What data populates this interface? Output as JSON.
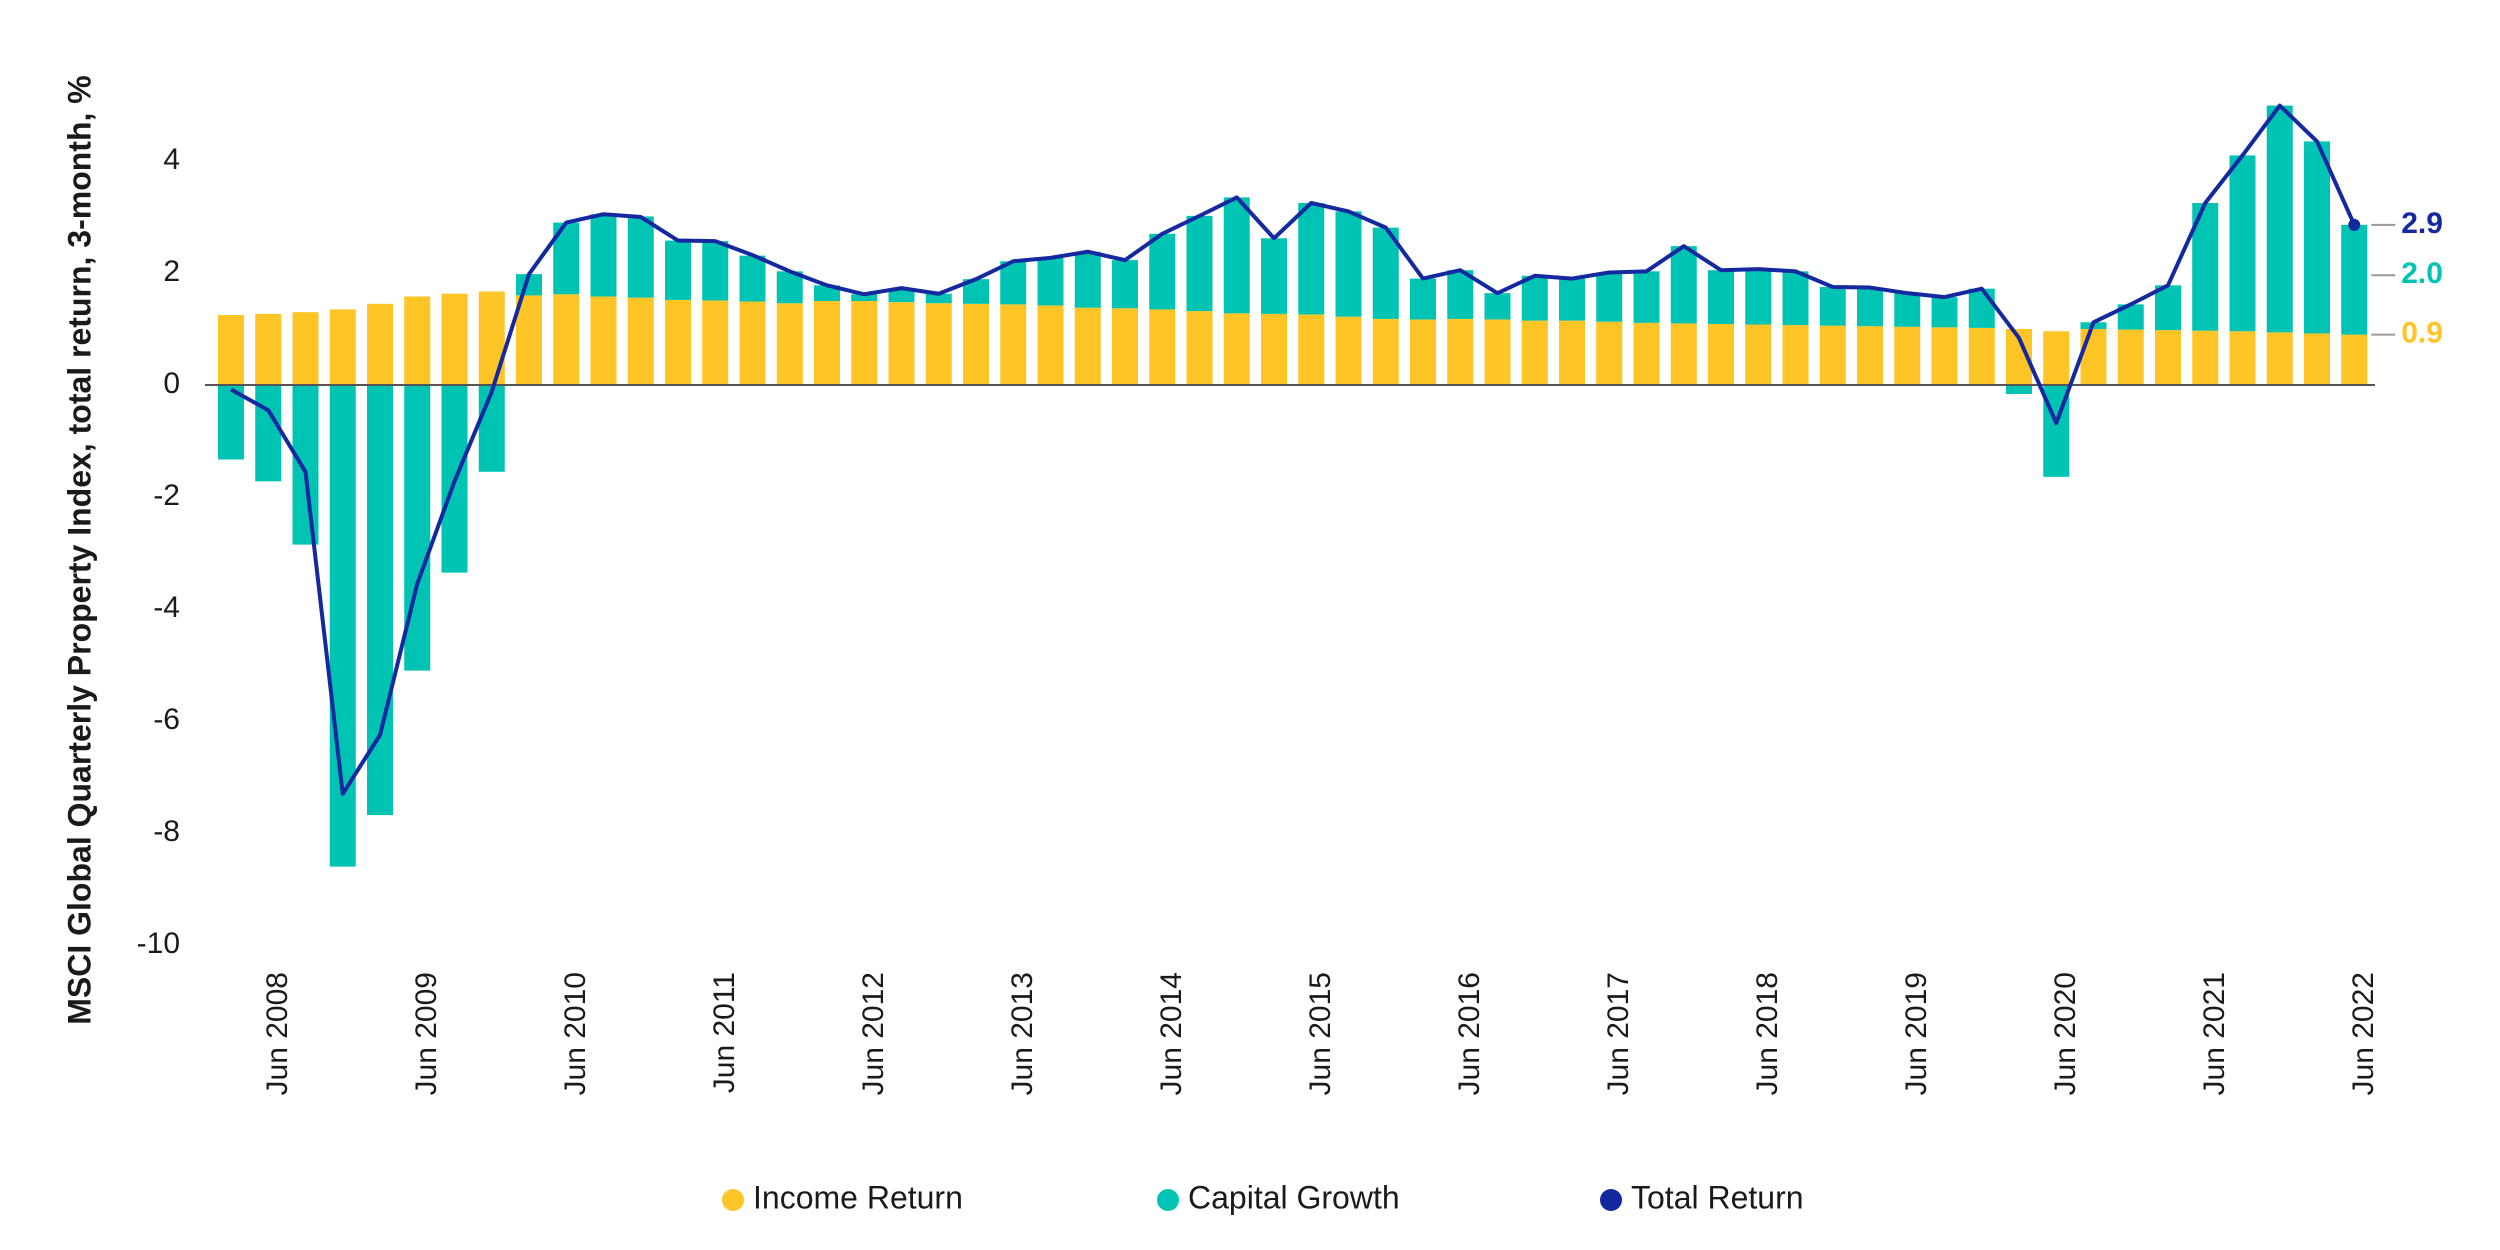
{
  "chart_data": {
    "type": "bar",
    "stacked": true,
    "ylabel": "MSCI Global Quarterly Property Index, total return, 3-month, %",
    "ylim": [
      -10,
      5
    ],
    "yticks": [
      4,
      2,
      0,
      -2,
      -4,
      -6,
      -8,
      -10
    ],
    "grid": false,
    "legend_position": "bottom",
    "categories": [
      "Mar 2008",
      "Jun 2008",
      "Sep 2008",
      "Dec 2008",
      "Mar 2009",
      "Jun 2009",
      "Sep 2009",
      "Dec 2009",
      "Mar 2010",
      "Jun 2010",
      "Sep 2010",
      "Dec 2010",
      "Mar 2011",
      "Jun 2011",
      "Sep 2011",
      "Dec 2011",
      "Mar 2012",
      "Jun 2012",
      "Sep 2012",
      "Dec 2012",
      "Mar 2013",
      "Jun 2013",
      "Sep 2013",
      "Dec 2013",
      "Mar 2014",
      "Jun 2014",
      "Sep 2014",
      "Dec 2014",
      "Mar 2015",
      "Jun 2015",
      "Sep 2015",
      "Dec 2015",
      "Mar 2016",
      "Jun 2016",
      "Sep 2016",
      "Dec 2016",
      "Mar 2017",
      "Jun 2017",
      "Sep 2017",
      "Dec 2017",
      "Mar 2018",
      "Jun 2018",
      "Sep 2018",
      "Dec 2018",
      "Mar 2019",
      "Jun 2019",
      "Sep 2019",
      "Dec 2019",
      "Mar 2020",
      "Jun 2020",
      "Sep 2020",
      "Dec 2020",
      "Mar 2021",
      "Jun 2021",
      "Sep 2021",
      "Dec 2021",
      "Mar 2022",
      "Jun 2022"
    ],
    "x_tick_labels": [
      "Jun 2008",
      "Jun 2009",
      "Jun 2010",
      "Jun 2011",
      "Jun 2012",
      "Jun 2013",
      "Jun 2014",
      "Jun 2015",
      "Jun 2016",
      "Jun 2017",
      "Jun 2018",
      "Jun 2019",
      "Jun 2020",
      "Jun 2021",
      "Jun 2022"
    ],
    "series": [
      {
        "name": "Income Return",
        "kind": "bar",
        "color": "#FFC425",
        "values": [
          1.25,
          1.27,
          1.3,
          1.35,
          1.45,
          1.58,
          1.63,
          1.67,
          1.6,
          1.62,
          1.58,
          1.56,
          1.52,
          1.51,
          1.49,
          1.46,
          1.5,
          1.5,
          1.48,
          1.46,
          1.45,
          1.44,
          1.42,
          1.38,
          1.37,
          1.35,
          1.32,
          1.28,
          1.27,
          1.26,
          1.22,
          1.18,
          1.17,
          1.18,
          1.17,
          1.15,
          1.15,
          1.13,
          1.11,
          1.1,
          1.09,
          1.08,
          1.07,
          1.06,
          1.05,
          1.04,
          1.03,
          1.02,
          1.0,
          0.96,
          1.0,
          0.99,
          0.98,
          0.97,
          0.96,
          0.94,
          0.92,
          0.9
        ]
      },
      {
        "name": "Capital Growth",
        "kind": "bar",
        "color": "#00C4B3",
        "values": [
          -1.33,
          -1.72,
          -2.85,
          -8.6,
          -7.68,
          -5.1,
          -3.35,
          -1.55,
          0.38,
          1.28,
          1.47,
          1.45,
          1.06,
          1.06,
          0.82,
          0.57,
          0.28,
          0.12,
          0.25,
          0.17,
          0.44,
          0.77,
          0.85,
          1.0,
          0.86,
          1.35,
          1.7,
          2.07,
          1.35,
          1.99,
          1.88,
          1.63,
          0.73,
          0.87,
          0.47,
          0.8,
          0.75,
          0.88,
          0.92,
          1.38,
          0.96,
          0.99,
          0.96,
          0.69,
          0.69,
          0.6,
          0.54,
          0.7,
          -0.16,
          -1.64,
          0.12,
          0.45,
          0.8,
          2.28,
          3.14,
          4.05,
          3.43,
          1.96
        ]
      },
      {
        "name": "Total Return",
        "kind": "line",
        "color": "#1428A0",
        "values": [
          -0.08,
          -0.45,
          -1.55,
          -7.3,
          -6.25,
          -3.55,
          -1.72,
          -0.12,
          1.98,
          2.9,
          3.05,
          3.0,
          2.58,
          2.57,
          2.32,
          2.03,
          1.78,
          1.62,
          1.73,
          1.63,
          1.89,
          2.21,
          2.27,
          2.38,
          2.23,
          2.7,
          3.02,
          3.35,
          2.62,
          3.25,
          3.1,
          2.81,
          1.9,
          2.05,
          1.64,
          1.95,
          1.9,
          2.01,
          2.03,
          2.48,
          2.05,
          2.07,
          2.03,
          1.75,
          1.74,
          1.64,
          1.57,
          1.72,
          0.84,
          -0.68,
          1.12,
          1.44,
          1.78,
          3.25,
          4.1,
          4.99,
          4.35,
          2.86
        ]
      }
    ],
    "end_labels": [
      {
        "series": "Total Return",
        "text": "2.9",
        "value": 2.86,
        "color": "#1428A0"
      },
      {
        "series": "Capital Growth",
        "text": "2.0",
        "value": 1.96,
        "color": "#00C4B3"
      },
      {
        "series": "Income Return",
        "text": "0.9",
        "value": 0.9,
        "color": "#FFC425"
      }
    ]
  }
}
